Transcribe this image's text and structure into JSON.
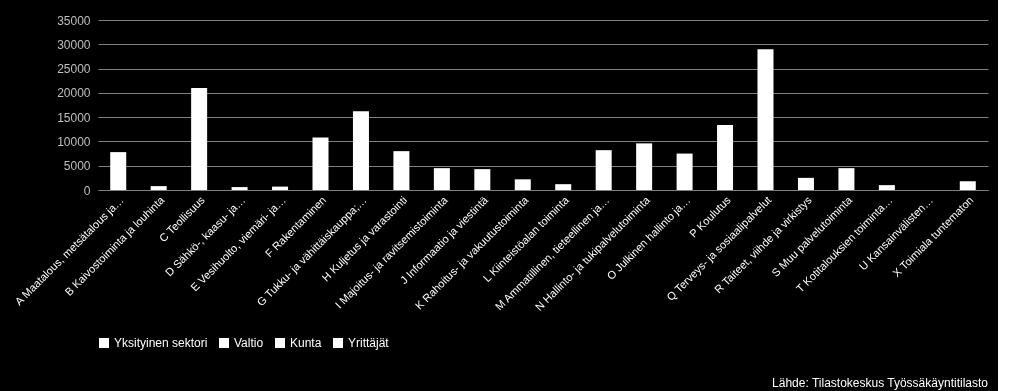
{
  "chart_data": {
    "type": "bar",
    "categories": [
      "A    Maatalous, metsätalous ja…",
      "B    Kaivostoiminta ja louhinta",
      "C    Teollisuus",
      "D    Sähkö-, kaasu- ja…",
      "E    Vesihuolto, viemäri- ja…",
      "F    Rakentaminen",
      "G    Tukku- ja vähittäiskauppa;…",
      "H    Kuljetus ja varastointi",
      "I    Majoitus- ja ravitsemistoiminta",
      "J    Informaatio ja viestintä",
      "K    Rahoitus- ja vakuutustoiminta",
      "L    Kiinteistöalan toiminta",
      "M    Ammatillinen, tieteellinen ja…",
      "N    Hallinto- ja tukipalvelutoiminta",
      "O    Julkinen hallinto ja…",
      "P    Koulutus",
      "Q    Terveys- ja sosiaalipalvelut",
      "R    Taiteet, viihde ja virkistys",
      "S    Muu palvelutoiminta",
      "T    Kotitalouksien toiminta…",
      "U    Kansainvälisten…",
      "X    Toimiala tuntematon"
    ],
    "series": [
      {
        "name": "Yksityinen sektori",
        "color": "#ffffff",
        "values": [
          7800,
          800,
          21000,
          600,
          700,
          10800,
          16200,
          8000,
          4500,
          4300,
          2200,
          1200,
          8200,
          9600,
          7500,
          13400,
          29000,
          2500,
          4500,
          1000,
          0,
          1800
        ]
      },
      {
        "name": "Valtio",
        "color": "#ffffff",
        "values": [
          null,
          null,
          null,
          null,
          null,
          null,
          null,
          null,
          null,
          null,
          null,
          null,
          null,
          null,
          null,
          null,
          null,
          null,
          null,
          null,
          null,
          null
        ]
      },
      {
        "name": "Kunta",
        "color": "#ffffff",
        "values": [
          null,
          null,
          null,
          null,
          null,
          null,
          null,
          null,
          null,
          null,
          null,
          null,
          null,
          null,
          null,
          null,
          null,
          null,
          null,
          null,
          null,
          null
        ]
      },
      {
        "name": "Yrittäjät",
        "color": "#ffffff",
        "values": [
          null,
          null,
          null,
          null,
          null,
          null,
          null,
          null,
          null,
          null,
          null,
          null,
          null,
          null,
          null,
          null,
          null,
          null,
          null,
          null,
          null,
          null
        ]
      }
    ],
    "ylim": [
      0,
      35000
    ],
    "yticks": [
      0,
      5000,
      10000,
      15000,
      20000,
      25000,
      30000,
      35000
    ],
    "grid": "y",
    "legend": "bottom",
    "annotations": [
      "Lähde: Tilastokeskus Työssäkäyntitilasto"
    ]
  }
}
